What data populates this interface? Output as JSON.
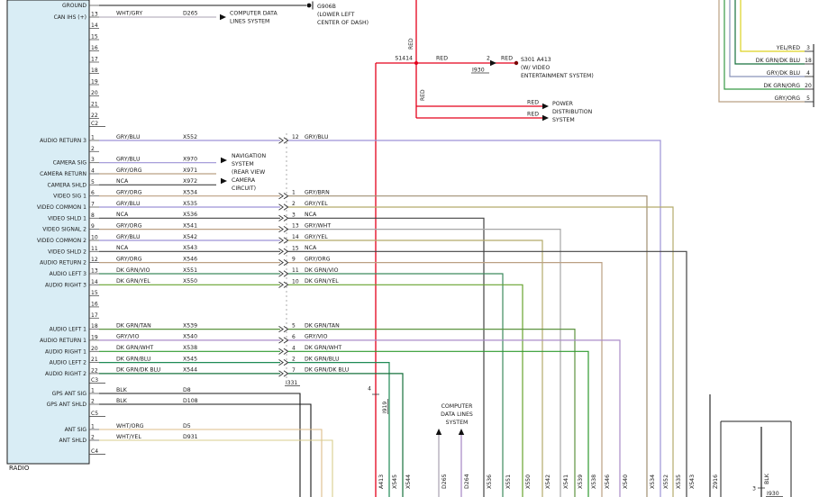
{
  "page": {
    "radio_label": "RADIO"
  },
  "palette": {
    "RED": "#e3001b",
    "BLK": "#1a1a1a",
    "NCA": "#444444",
    "WHT/GRY": "#a8a2b0",
    "WHT/ORG": "#dcbd8a",
    "WHT/YEL": "#d9cd8d",
    "WHT/VIO": "#a585c5",
    "GRY/BLU": "#9d92d6",
    "GRY/ORG": "#bba083",
    "GRY/BRN": "#a08f72",
    "GRY/YEL": "#b3ab6b",
    "GRY/WHT": "#a6a6a6",
    "GRY/VIO": "#ab8cc9",
    "GRY/DK BLU": "#8b95ba",
    "DK GRN/VIO": "#3d8a5e",
    "DK GRN/YEL": "#67a32e",
    "DK GRN/TAN": "#5d9440",
    "DK GRN/WHT": "#2f9a2f",
    "DK GRN/BLU": "#1f8a55",
    "DK GRN/DK BLU": "#17703d",
    "DK GRN/ORG": "#379a46",
    "YEL/RED": "#ddd222"
  },
  "top": {
    "ground": {
      "label": "GROUND",
      "wire_color": "BLK",
      "dest": [
        "G906B",
        "(LOWER LEFT",
        "CENTER OF DASH)"
      ]
    },
    "can": {
      "pin": "13",
      "label": "CAN IHS (+)",
      "wire_color": "WHT/GRY",
      "circuit": "D265",
      "dest": [
        "COMPUTER DATA",
        "LINES SYSTEM"
      ]
    },
    "pins": [
      "14",
      "15",
      "16",
      "17",
      "18",
      "19",
      "20",
      "21",
      "22"
    ],
    "connector": "C2"
  },
  "red_network": {
    "splice": "S1414",
    "red": "RED",
    "inline_pin": "2",
    "inline_connector": "I930",
    "s301": "S301 A413",
    "s301_note": [
      "(W/ VIDEO",
      "ENTERTAINMENT SYSTEM)"
    ],
    "power": [
      "POWER",
      "DISTRIBUTION",
      "SYSTEM"
    ],
    "a413_pin": "4",
    "a413_connector": "I919",
    "a413_terminal": "A413"
  },
  "right_pins": [
    {
      "pin": "3",
      "color": "YEL/RED"
    },
    {
      "pin": "18",
      "color": "DK GRN/DK BLU"
    },
    {
      "pin": "4",
      "color": "GRY/DK BLU"
    },
    {
      "pin": "20",
      "color": "DK GRN/ORG"
    },
    {
      "pin": "5",
      "color": "GRY/ORG"
    }
  ],
  "nav": {
    "text": [
      "NAVIGATION",
      "SYSTEM",
      "(REAR VIEW",
      "CAMERA",
      "CIRCUIT)"
    ]
  },
  "mid_connector": "I331",
  "rows": [
    {
      "pin": "1",
      "label": "AUDIO RETURN 3",
      "color": "GRY/BLU",
      "circuit": "X552",
      "right_pin": "12",
      "right_color": "GRY/BLU",
      "terminal": "X552"
    },
    {
      "pin": "2"
    },
    {
      "pin": "3",
      "label": "CAMERA SIG",
      "color": "GRY/BLU",
      "circuit": "X970",
      "nav": true
    },
    {
      "pin": "4",
      "label": "CAMERA RETURN",
      "color": "GRY/ORG",
      "circuit": "X971",
      "nav": true
    },
    {
      "pin": "5",
      "label": "CAMERA SHLD",
      "color": "NCA",
      "circuit": "X972",
      "nav": true
    },
    {
      "pin": "6",
      "label": "VIDEO SIG 1",
      "color": "GRY/ORG",
      "circuit": "X534",
      "right_pin": "1",
      "right_color": "GRY/BRN",
      "terminal": "X534"
    },
    {
      "pin": "7",
      "label": "VIDEO COMMON 1",
      "color": "GRY/BLU",
      "circuit": "X535",
      "right_pin": "2",
      "right_color": "GRY/YEL",
      "terminal": "X535"
    },
    {
      "pin": "8",
      "label": "VIDEO SHLD 1",
      "color": "NCA",
      "circuit": "X536",
      "right_pin": "3",
      "right_color": "NCA",
      "terminal": "X536"
    },
    {
      "pin": "9",
      "label": "VIDEO SIGNAL 2",
      "color": "GRY/ORG",
      "circuit": "X541",
      "right_pin": "13",
      "right_color": "GRY/WHT",
      "terminal": "X541"
    },
    {
      "pin": "10",
      "label": "VIDEO COMMON 2",
      "color": "GRY/BLU",
      "circuit": "X542",
      "right_pin": "14",
      "right_color": "GRY/YEL",
      "terminal": "X542"
    },
    {
      "pin": "11",
      "label": "VIDEO SHLD 2",
      "color": "NCA",
      "circuit": "X543",
      "right_pin": "15",
      "right_color": "NCA",
      "terminal": "X543"
    },
    {
      "pin": "12",
      "label": "AUDIO RETURN 2",
      "color": "GRY/ORG",
      "circuit": "X546",
      "right_pin": "9",
      "right_color": "GRY/ORG",
      "terminal": "X546"
    },
    {
      "pin": "13",
      "label": "AUDIO LEFT 3",
      "color": "DK GRN/VIO",
      "circuit": "X551",
      "right_pin": "11",
      "right_color": "DK GRN/VIO",
      "terminal": "X551"
    },
    {
      "pin": "14",
      "label": "AUDIO RIGHT 3",
      "color": "DK GRN/YEL",
      "circuit": "X550",
      "right_pin": "10",
      "right_color": "DK GRN/YEL",
      "terminal": "X550"
    },
    {
      "pin": "15"
    },
    {
      "pin": "16"
    },
    {
      "pin": "17"
    },
    {
      "pin": "18",
      "label": "AUDIO LEFT 1",
      "color": "DK GRN/TAN",
      "circuit": "X539",
      "right_pin": "5",
      "right_color": "DK GRN/TAN",
      "terminal": "X539"
    },
    {
      "pin": "19",
      "label": "AUDIO RETURN 1",
      "color": "GRY/VIO",
      "circuit": "X540",
      "right_pin": "6",
      "right_color": "GRY/VIO",
      "terminal": "X540"
    },
    {
      "pin": "20",
      "label": "AUDIO RIGHT 1",
      "color": "DK GRN/WHT",
      "circuit": "X538",
      "right_pin": "4",
      "right_color": "DK GRN/WHT",
      "terminal": "X538"
    },
    {
      "pin": "21",
      "label": "AUDIO LEFT 2",
      "color": "DK GRN/BLU",
      "circuit": "X545",
      "right_pin": "2",
      "right_color": "DK GRN/BLU",
      "terminal": "X545"
    },
    {
      "pin": "22",
      "label": "AUDIO RIGHT 2",
      "color": "DK GRN/DK BLU",
      "circuit": "X544",
      "right_pin": "7",
      "right_color": "DK GRN/DK BLU",
      "terminal": "X544"
    }
  ],
  "lower_sections": [
    {
      "connector": "C3",
      "rows": [
        {
          "pin": "1",
          "label": "GPS ANT SIG",
          "color": "BLK",
          "circuit": "D8"
        },
        {
          "pin": "2",
          "label": "GPS ANT SHLD",
          "color": "BLK",
          "circuit": "D108"
        }
      ]
    },
    {
      "connector": "C5",
      "rows": [
        {
          "pin": "1",
          "label": "ANT SIG",
          "color": "WHT/ORG",
          "circuit": "D5"
        },
        {
          "pin": "2",
          "label": "ANT SHLD",
          "color": "WHT/YEL",
          "circuit": "D931"
        }
      ]
    },
    {
      "connector": "C4",
      "rows": []
    }
  ],
  "bottom": {
    "computer_data": [
      "COMPUTER",
      "DATA LINES",
      "SYSTEM"
    ],
    "data_lines": [
      {
        "terminal": "D265",
        "color": "WHT/GRY"
      },
      {
        "terminal": "D264",
        "color": "WHT/VIO"
      }
    ],
    "ground_terminal": "Z916"
  },
  "right_box": {
    "wire": "BLK",
    "pin": "3",
    "connector": "I930"
  }
}
